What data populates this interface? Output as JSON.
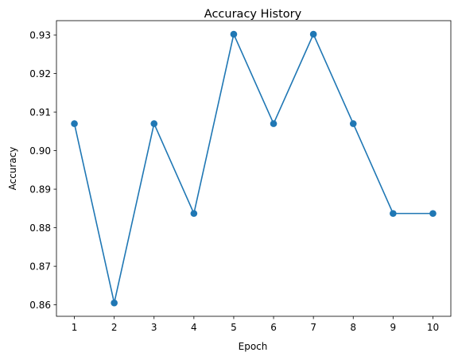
{
  "chart_data": {
    "type": "line",
    "title": "Accuracy History",
    "xlabel": "Epoch",
    "ylabel": "Accuracy",
    "x": [
      1,
      2,
      3,
      4,
      5,
      6,
      7,
      8,
      9,
      10
    ],
    "series": [
      {
        "values": [
          0.907,
          0.8605,
          0.907,
          0.8837,
          0.9302,
          0.907,
          0.9302,
          0.907,
          0.8837,
          0.8837
        ],
        "color": "#1f77b4",
        "marker": "circle"
      }
    ],
    "xticks": [
      "1",
      "2",
      "3",
      "4",
      "5",
      "6",
      "7",
      "8",
      "9",
      "10"
    ],
    "yticks": [
      "0.86",
      "0.87",
      "0.88",
      "0.89",
      "0.90",
      "0.91",
      "0.92",
      "0.93"
    ],
    "ytick_values": [
      0.86,
      0.87,
      0.88,
      0.89,
      0.9,
      0.91,
      0.92,
      0.93
    ],
    "xlim": [
      0.55,
      10.45
    ],
    "ylim": [
      0.85703,
      0.93372
    ],
    "grid": false,
    "legend": "none"
  }
}
